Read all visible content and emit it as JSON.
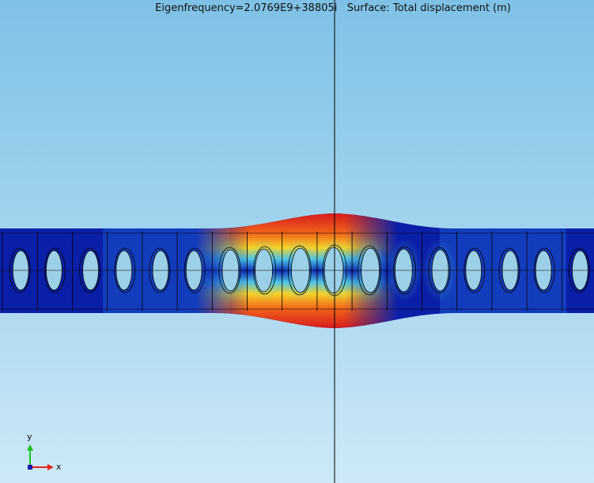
{
  "plot": {
    "title": "Eigenfrequency=2.0769E9+38805i   Surface: Total displacement (m)",
    "colors": {
      "background_top": "#7fc1e6",
      "background_bottom": "#cde9f7",
      "mesh_line": "#000000",
      "hole_fill": "#9ccfe8"
    }
  },
  "axes_indicator": {
    "x_label": "x",
    "y_label": "y",
    "x_color": "#e8221a",
    "y_color": "#1ec11e",
    "origin_color": "#1a1aa8"
  }
}
